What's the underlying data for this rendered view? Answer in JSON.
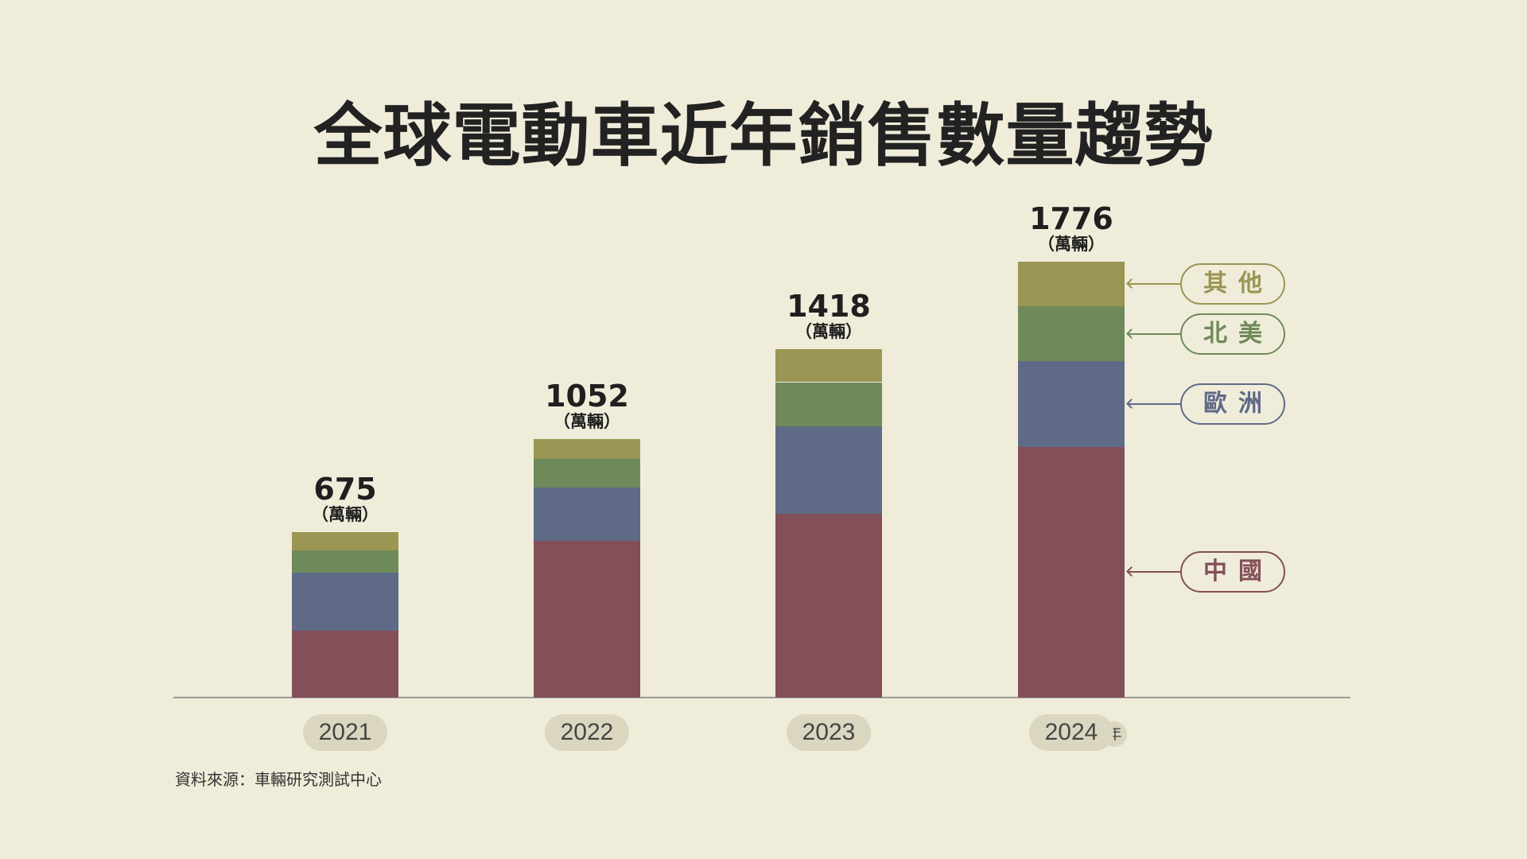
{
  "title": "全球電動車近年銷售數量趨勢",
  "source": "資料來源：車輛研究測試中心",
  "chart_data": {
    "type": "bar",
    "stacked": true,
    "title": "全球電動車近年銷售數量趨勢",
    "categories": [
      "2021",
      "2022",
      "2023",
      "2024"
    ],
    "x_suffix": "年",
    "unit": "（萬輛）",
    "totals": [
      675,
      1052,
      1418,
      1776
    ],
    "series": [
      {
        "name": "中國",
        "color": "#834f58",
        "values": [
          272,
          640,
          748,
          1021
        ]
      },
      {
        "name": "歐洲",
        "color": "#5f6a87",
        "values": [
          238,
          217,
          358,
          350
        ]
      },
      {
        "name": "北美",
        "color": "#6e8a5a",
        "values": [
          89,
          114,
          179,
          222
        ]
      },
      {
        "name": "其他",
        "color": "#9a9653",
        "values": [
          76,
          81,
          133,
          183
        ]
      }
    ],
    "ylim": [
      0,
      1776
    ],
    "grid": false,
    "legend": "right"
  }
}
